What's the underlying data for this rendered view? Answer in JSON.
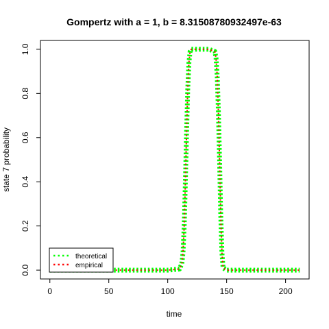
{
  "chart_data": {
    "type": "line",
    "title": "Gompertz with a = 1, b = 8.31508780932497e-63",
    "xlabel": "time",
    "ylabel": "state 7 probability",
    "xlim": [
      -8,
      220
    ],
    "ylim": [
      -0.04,
      1.04
    ],
    "xticks": [
      0,
      50,
      100,
      150,
      200
    ],
    "yticks": [
      0.0,
      0.2,
      0.4,
      0.6,
      0.8,
      1.0
    ],
    "xtick_labels": [
      "0",
      "50",
      "100",
      "150",
      "200"
    ],
    "ytick_labels": [
      "0.0",
      "0.2",
      "0.4",
      "0.6",
      "0.8",
      "1.0"
    ],
    "grid": false,
    "legend_position": "bottom-left",
    "series": [
      {
        "name": "theoretical",
        "color": "#00ff00",
        "line_style": "dotted-thick",
        "x": [
          0,
          50,
          100,
          110,
          112,
          113,
          114,
          115,
          116,
          117,
          118,
          119,
          120,
          125,
          130,
          135,
          140,
          141,
          142,
          143,
          144,
          145,
          146,
          147,
          150,
          200,
          212
        ],
        "y": [
          0,
          0,
          0,
          0.005,
          0.03,
          0.08,
          0.2,
          0.4,
          0.62,
          0.82,
          0.94,
          0.99,
          1.0,
          1.0,
          1.0,
          1.0,
          0.99,
          0.96,
          0.88,
          0.72,
          0.5,
          0.25,
          0.08,
          0.01,
          0,
          0,
          0
        ]
      },
      {
        "name": "empirical",
        "color": "#ff0000",
        "line_style": "dotted",
        "x": [
          0,
          50,
          100,
          110,
          112,
          113,
          114,
          115,
          116,
          117,
          118,
          119,
          120,
          125,
          130,
          135,
          140,
          141,
          142,
          143,
          144,
          145,
          146,
          147,
          150,
          200,
          212
        ],
        "y": [
          0,
          0,
          0,
          0.005,
          0.03,
          0.08,
          0.2,
          0.4,
          0.62,
          0.82,
          0.94,
          0.99,
          1.0,
          1.0,
          1.0,
          1.0,
          0.99,
          0.96,
          0.88,
          0.72,
          0.5,
          0.25,
          0.08,
          0.01,
          0,
          0,
          0
        ]
      }
    ]
  }
}
